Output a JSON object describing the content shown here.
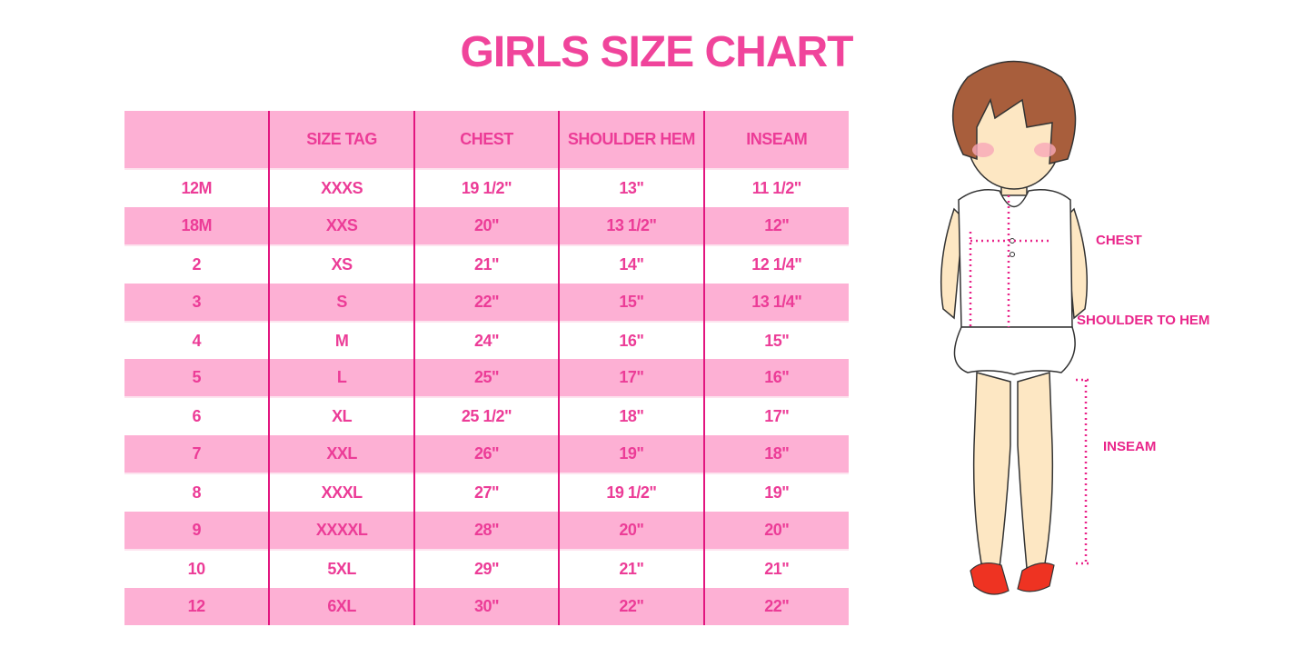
{
  "title": "GIRLS SIZE CHART",
  "table": {
    "headers": [
      "",
      "SIZE TAG",
      "CHEST",
      "SHOULDER HEM",
      "INSEAM"
    ],
    "rows": [
      [
        "12M",
        "XXXS",
        "19 1/2\"",
        "13\"",
        "11 1/2\""
      ],
      [
        "18M",
        "XXS",
        "20\"",
        "13 1/2\"",
        "12\""
      ],
      [
        "2",
        "XS",
        "21\"",
        "14\"",
        "12 1/4\""
      ],
      [
        "3",
        "S",
        "22\"",
        "15\"",
        "13 1/4\""
      ],
      [
        "4",
        "M",
        "24\"",
        "16\"",
        "15\""
      ],
      [
        "5",
        "L",
        "25\"",
        "17\"",
        "16\""
      ],
      [
        "6",
        "XL",
        "25 1/2\"",
        "18\"",
        "17\""
      ],
      [
        "7",
        "XXL",
        "26\"",
        "19\"",
        "18\""
      ],
      [
        "8",
        "XXXL",
        "27\"",
        "19 1/2\"",
        "19\""
      ],
      [
        "9",
        "XXXXL",
        "28\"",
        "20\"",
        "20\""
      ],
      [
        "10",
        "5XL",
        "29\"",
        "21\"",
        "21\""
      ],
      [
        "12",
        "6XL",
        "30\"",
        "22\"",
        "22\""
      ]
    ]
  },
  "illustration": {
    "labels": {
      "chest": "CHEST",
      "shoulder_to_hem": "SHOULDER TO HEM",
      "inseam": "INSEAM"
    }
  },
  "colors": {
    "accent": "#ec3c97",
    "stripe": "#fdb0d4",
    "divider": "#e2157f"
  }
}
